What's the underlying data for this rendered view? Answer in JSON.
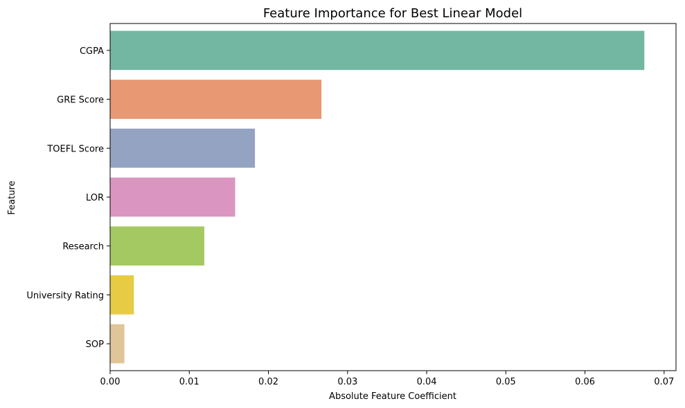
{
  "chart_data": {
    "type": "bar",
    "orientation": "horizontal",
    "title": "Feature Importance for Best Linear Model",
    "xlabel": "Absolute Feature Coefficient",
    "ylabel": "Feature",
    "categories": [
      "CGPA",
      "GRE Score",
      "TOEFL Score",
      "LOR",
      "Research",
      "University Rating",
      "SOP"
    ],
    "values": [
      0.0675,
      0.0267,
      0.0183,
      0.0158,
      0.0119,
      0.003,
      0.0018
    ],
    "colors": [
      "#73b6a1",
      "#e89873",
      "#94a3c2",
      "#db95c1",
      "#a4c963",
      "#e7cb44",
      "#dfc598"
    ],
    "xlim": [
      0,
      0.0715
    ],
    "xticks": [
      0.0,
      0.01,
      0.02,
      0.03,
      0.04,
      0.05,
      0.06,
      0.07
    ],
    "xtick_labels": [
      "0.00",
      "0.01",
      "0.02",
      "0.03",
      "0.04",
      "0.05",
      "0.06",
      "0.07"
    ],
    "grid": false,
    "legend": "none"
  }
}
